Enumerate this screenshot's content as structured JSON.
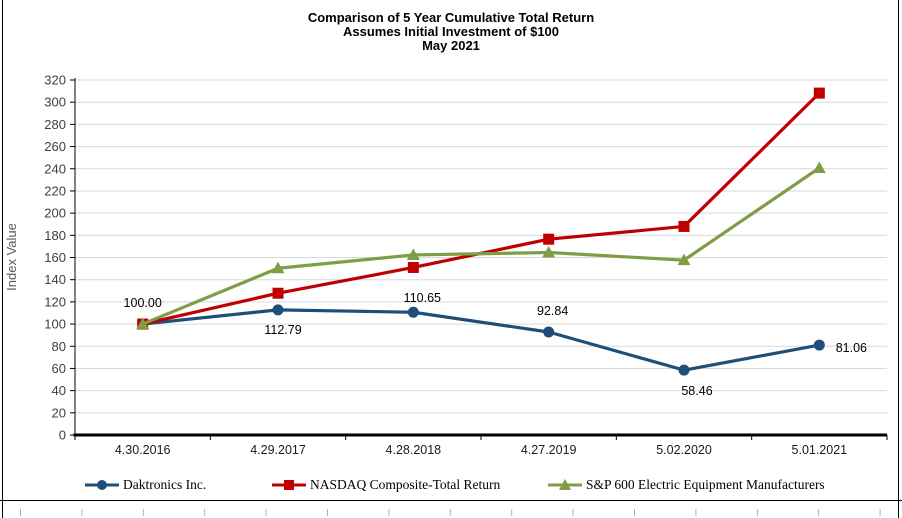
{
  "title": {
    "line1": "Comparison of 5 Year Cumulative Total Return",
    "line2": "Assumes Initial Investment of $100",
    "line3": "May 2021"
  },
  "chart_data": {
    "type": "line",
    "title": "Comparison of 5 Year Cumulative Total Return Assumes Initial Investment of $100 May 2021",
    "ylabel": "Index Value",
    "xlabel": "",
    "ylim": [
      0,
      320
    ],
    "ytick_step": 20,
    "grid": true,
    "legend_position": "bottom",
    "categories": [
      "4.30.2016",
      "4.29.2017",
      "4.28.2018",
      "4.27.2019",
      "5.02.2020",
      "5.01.2021"
    ],
    "series": [
      {
        "name": "Daktronics Inc.",
        "color": "#1F4E79",
        "marker": "circle",
        "values": [
          100.0,
          112.79,
          110.65,
          92.84,
          58.46,
          81.06
        ],
        "data_labels": [
          "100.00",
          "112.79",
          "110.65",
          "92.84",
          "58.46",
          "81.06"
        ]
      },
      {
        "name": "NASDAQ Composite-Total Return",
        "color": "#C00000",
        "marker": "square",
        "values": [
          100.0,
          127.8,
          151.0,
          176.5,
          188.0,
          308.2
        ],
        "data_labels": []
      },
      {
        "name": "S&P 600 Electric Equipment Manufacturers",
        "color": "#7E9D44",
        "marker": "triangle",
        "values": [
          100.0,
          150.3,
          162.3,
          164.5,
          157.6,
          240.7
        ],
        "data_labels": []
      }
    ]
  },
  "colors": {
    "gridline": "#D9D9D9",
    "axis": "#000000",
    "y_tick_label": "#404040",
    "x_tick_label": "#1a1a1a",
    "axis_title": "#595959",
    "ruler_tick": "#b0b0b0"
  }
}
